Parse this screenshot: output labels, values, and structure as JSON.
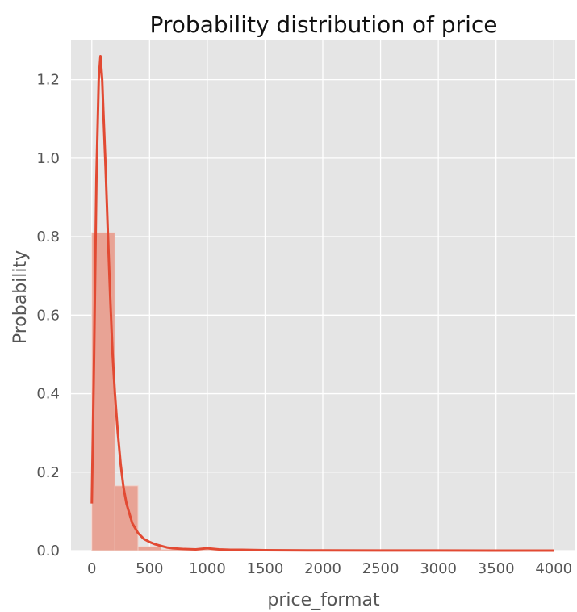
{
  "chart_data": {
    "type": "bar",
    "title": "Probability distribution of price",
    "xlabel": "price_format",
    "ylabel": "Probability",
    "xlim": [
      -180,
      4180
    ],
    "ylim": [
      0,
      1.3
    ],
    "x_ticks": [
      0,
      500,
      1000,
      1500,
      2000,
      2500,
      3000,
      3500,
      4000
    ],
    "y_ticks": [
      0.0,
      0.2,
      0.4,
      0.6,
      0.8,
      1.0,
      1.2
    ],
    "x_tick_labels": [
      "0",
      "500",
      "1000",
      "1500",
      "2000",
      "2500",
      "3000",
      "3500",
      "4000"
    ],
    "y_tick_labels": [
      "0.0",
      "0.2",
      "0.4",
      "0.6",
      "0.8",
      "1.0",
      "1.2"
    ],
    "grid": true,
    "colors": {
      "background": "#E5E5E5",
      "grid": "#FFFFFF",
      "bar_fill": "#E8A395",
      "kde_line": "#E24A33"
    },
    "histogram": {
      "bin_edges": [
        0,
        200,
        400,
        600,
        800,
        1000,
        1200,
        1400,
        1600
      ],
      "values": [
        0.81,
        0.165,
        0.01,
        0.003,
        0.001,
        0.0005,
        0.0003,
        0.0002
      ]
    },
    "kde": {
      "x": [
        0,
        20,
        40,
        60,
        75,
        90,
        100,
        120,
        140,
        160,
        180,
        200,
        225,
        250,
        275,
        300,
        350,
        400,
        450,
        500,
        550,
        600,
        650,
        700,
        800,
        900,
        1000,
        1100,
        1200,
        1300,
        1500,
        2000,
        2500,
        3000,
        3500,
        4000
      ],
      "y": [
        0.12,
        0.5,
        0.95,
        1.2,
        1.26,
        1.2,
        1.12,
        0.97,
        0.8,
        0.64,
        0.5,
        0.4,
        0.3,
        0.22,
        0.16,
        0.12,
        0.07,
        0.045,
        0.03,
        0.022,
        0.016,
        0.012,
        0.008,
        0.006,
        0.004,
        0.003,
        0.006,
        0.003,
        0.002,
        0.002,
        0.001,
        0.0005,
        0.0003,
        0.0002,
        0.0001,
        0.0001
      ]
    }
  }
}
